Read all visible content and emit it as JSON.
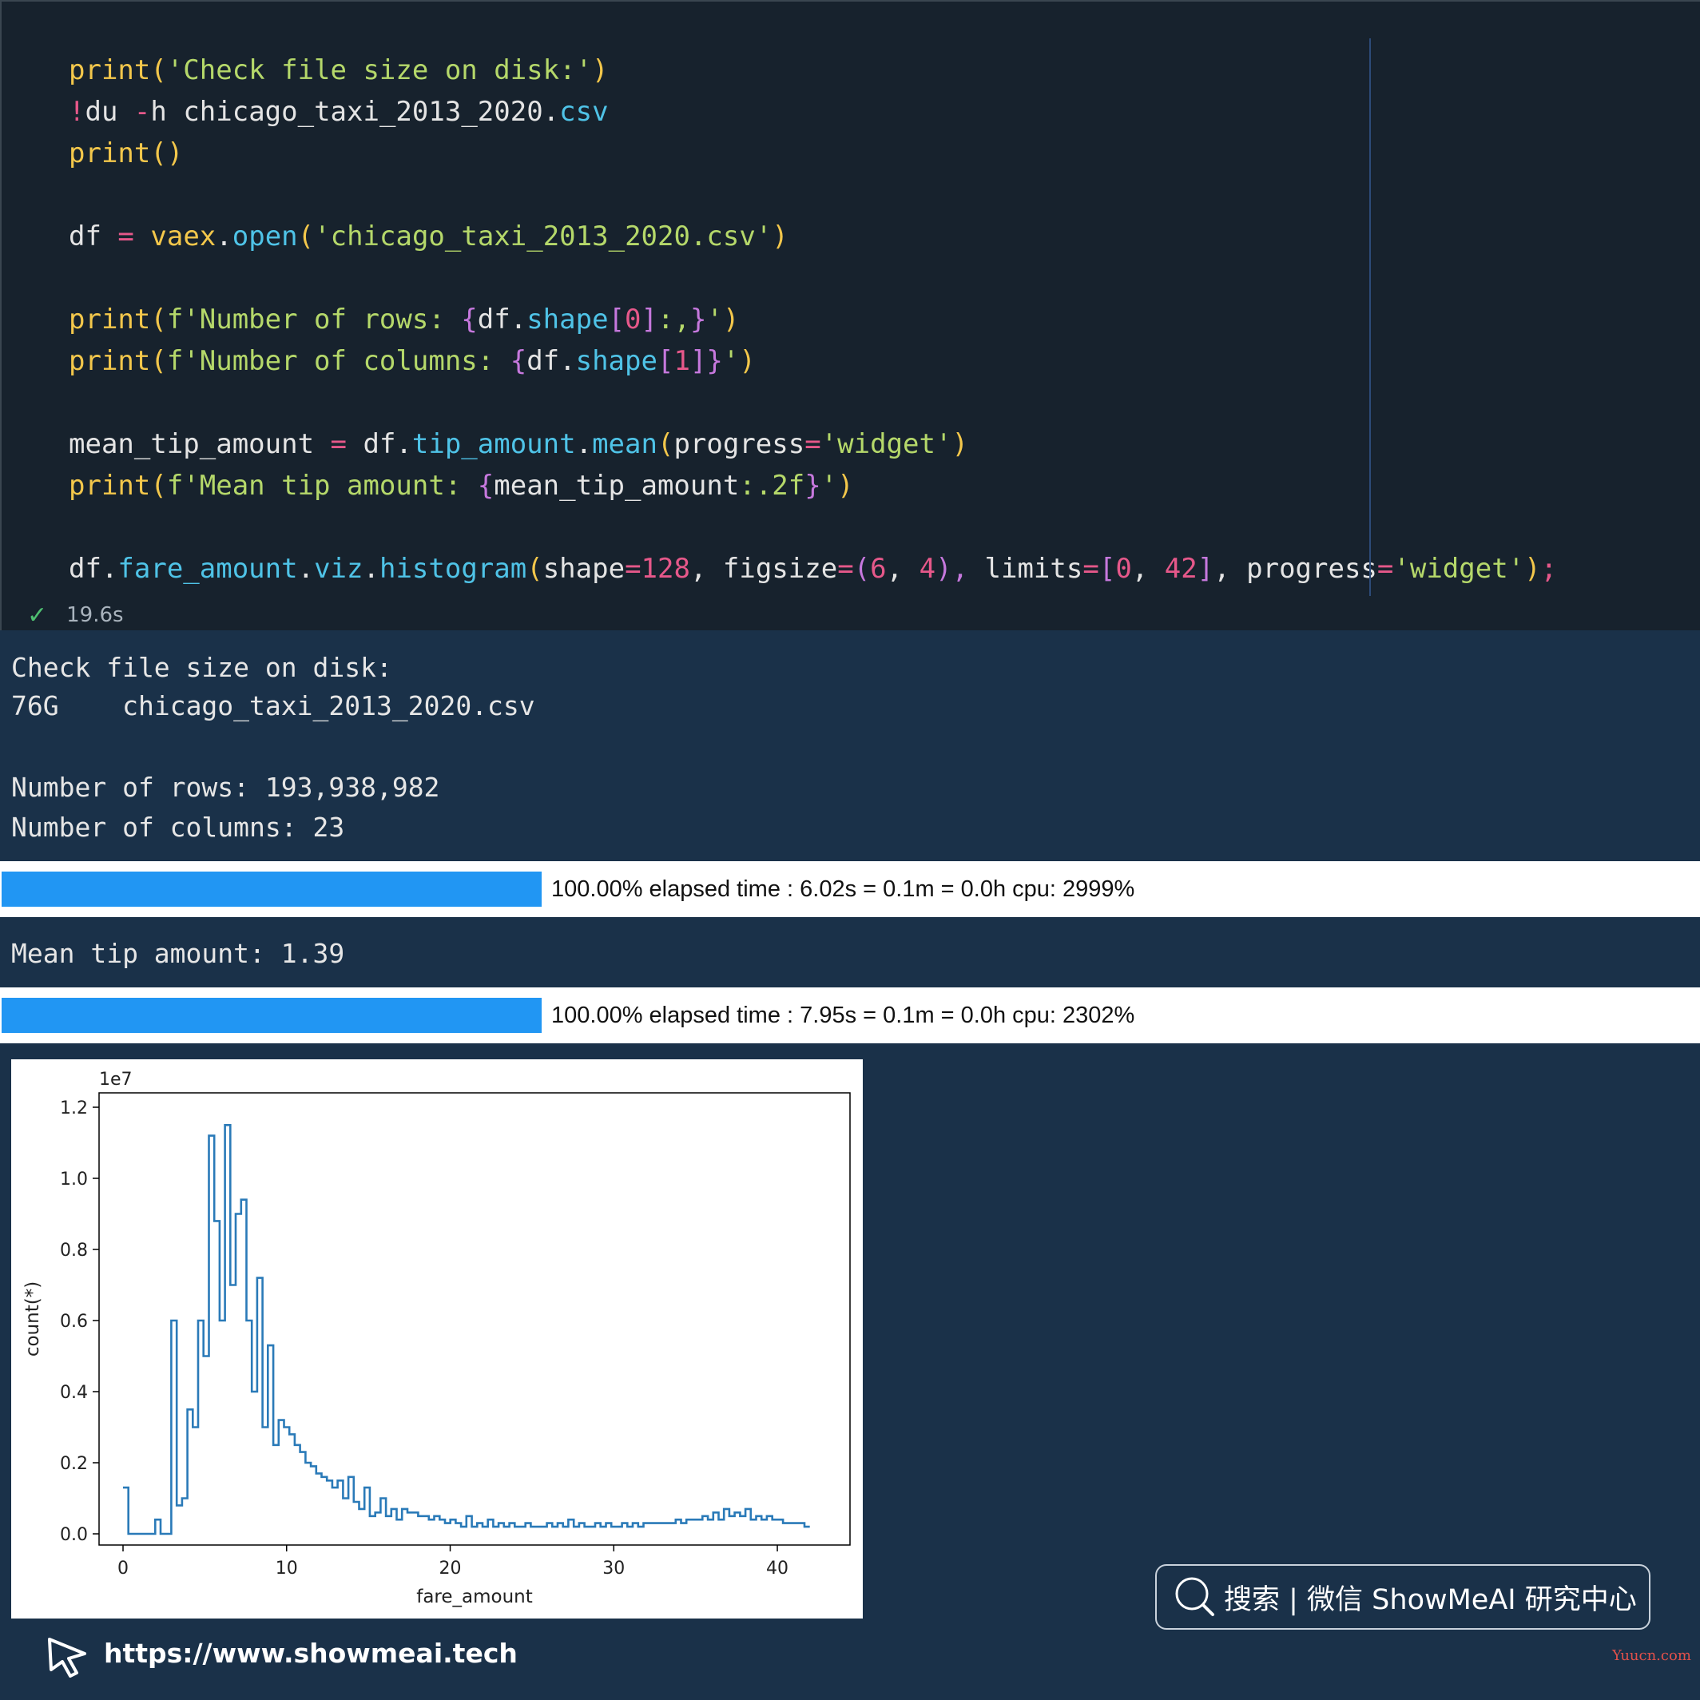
{
  "code": {
    "lines": [
      [
        [
          "kw",
          "print("
        ],
        [
          "st",
          "'Check file size on disk:'"
        ],
        [
          "kw",
          ")"
        ]
      ],
      [
        [
          "nm",
          "!"
        ],
        [
          "tx",
          "du "
        ],
        [
          "op",
          "-"
        ],
        [
          "tx",
          "h chicago_taxi_2013_2020."
        ],
        [
          "bl",
          "csv"
        ]
      ],
      [
        [
          "kw",
          "print()"
        ]
      ],
      [],
      [
        [
          "tx",
          "df "
        ],
        [
          "op",
          "="
        ],
        [
          "tx",
          " "
        ],
        [
          "kw",
          "vaex"
        ],
        [
          "tx",
          "."
        ],
        [
          "bl",
          "open"
        ],
        [
          "kw",
          "("
        ],
        [
          "st",
          "'chicago_taxi_2013_2020.csv'"
        ],
        [
          "kw",
          ")"
        ]
      ],
      [],
      [
        [
          "kw",
          "print("
        ],
        [
          "st",
          "f'Number of rows: "
        ],
        [
          "pu",
          "{"
        ],
        [
          "tx",
          "df."
        ],
        [
          "bl",
          "shape"
        ],
        [
          "pu",
          "["
        ],
        [
          "nm",
          "0"
        ],
        [
          "pu",
          "]"
        ],
        [
          "st",
          ":,"
        ],
        [
          "pu",
          "}"
        ],
        [
          "st",
          "'"
        ],
        [
          "kw",
          ")"
        ]
      ],
      [
        [
          "kw",
          "print("
        ],
        [
          "st",
          "f'Number of columns: "
        ],
        [
          "pu",
          "{"
        ],
        [
          "tx",
          "df."
        ],
        [
          "bl",
          "shape"
        ],
        [
          "pu",
          "["
        ],
        [
          "nm",
          "1"
        ],
        [
          "pu",
          "]}"
        ],
        [
          "st",
          "'"
        ],
        [
          "kw",
          ")"
        ]
      ],
      [],
      [
        [
          "tx",
          "mean_tip_amount "
        ],
        [
          "op",
          "="
        ],
        [
          "tx",
          " df."
        ],
        [
          "bl",
          "tip_amount"
        ],
        [
          "tx",
          "."
        ],
        [
          "bl",
          "mean"
        ],
        [
          "kw",
          "("
        ],
        [
          "tx",
          "progress"
        ],
        [
          "op",
          "="
        ],
        [
          "st",
          "'widget'"
        ],
        [
          "kw",
          ")"
        ]
      ],
      [
        [
          "kw",
          "print("
        ],
        [
          "st",
          "f'Mean tip amount: "
        ],
        [
          "pu",
          "{"
        ],
        [
          "tx",
          "mean_tip_amount"
        ],
        [
          "st",
          ":.2f"
        ],
        [
          "pu",
          "}"
        ],
        [
          "st",
          "'"
        ],
        [
          "kw",
          ")"
        ]
      ],
      [],
      [
        [
          "tx",
          "df."
        ],
        [
          "bl",
          "fare_amount"
        ],
        [
          "tx",
          "."
        ],
        [
          "bl",
          "viz"
        ],
        [
          "tx",
          "."
        ],
        [
          "bl",
          "histogram"
        ],
        [
          "kw",
          "("
        ],
        [
          "tx",
          "shape"
        ],
        [
          "op",
          "="
        ],
        [
          "nm",
          "128"
        ],
        [
          "tx",
          ", figsize"
        ],
        [
          "op",
          "="
        ],
        [
          "pu",
          "("
        ],
        [
          "nm",
          "6"
        ],
        [
          "tx",
          ", "
        ],
        [
          "nm",
          "4"
        ],
        [
          "pu",
          "),"
        ],
        [
          "tx",
          " limits"
        ],
        [
          "op",
          "="
        ],
        [
          "pu",
          "["
        ],
        [
          "nm",
          "0"
        ],
        [
          "tx",
          ", "
        ],
        [
          "nm",
          "42"
        ],
        [
          "pu",
          "]"
        ],
        [
          "tx",
          ", progress"
        ],
        [
          "op",
          "="
        ],
        [
          "st",
          "'widget'"
        ],
        [
          "kw",
          ")"
        ],
        [
          "op",
          ";"
        ]
      ]
    ],
    "exec_time": "19.6s"
  },
  "output": {
    "file_check_header": "Check file size on disk:",
    "file_size": "76G",
    "file_name": "chicago_taxi_2013_2020.csv",
    "rows_line": "Number of rows: 193,938,982",
    "cols_line": "Number of columns: 23",
    "progress1": {
      "percent": 100,
      "text": "100.00% elapsed time : 6.02s = 0.1m = 0.0h cpu: 2999%"
    },
    "mean_tip_line": "Mean tip amount: 1.39",
    "progress2": {
      "percent": 100,
      "text": "100.00% elapsed time : 7.95s = 0.1m = 0.0h cpu: 2302%"
    }
  },
  "chart_data": {
    "type": "line",
    "title": "",
    "xlabel": "fare_amount",
    "ylabel": "count(*)",
    "y_offset_label": "1e7",
    "xlim": [
      0,
      42
    ],
    "ylim": [
      0,
      1.2
    ],
    "xticks": [
      "0",
      "10",
      "20",
      "30",
      "40"
    ],
    "yticks": [
      "0.0",
      "0.2",
      "0.4",
      "0.6",
      "0.8",
      "1.0",
      "1.2"
    ],
    "color": "#2a7ab8",
    "bin_width": 0.328,
    "values": [
      0.13,
      0.0,
      0.0,
      0.0,
      0.0,
      0.0,
      0.04,
      0.0,
      0.0,
      0.6,
      0.08,
      0.1,
      0.35,
      0.3,
      0.6,
      0.5,
      1.12,
      0.88,
      0.6,
      1.15,
      0.7,
      0.9,
      0.94,
      0.6,
      0.4,
      0.72,
      0.3,
      0.53,
      0.25,
      0.32,
      0.3,
      0.28,
      0.25,
      0.23,
      0.2,
      0.19,
      0.17,
      0.16,
      0.15,
      0.13,
      0.15,
      0.1,
      0.16,
      0.09,
      0.07,
      0.13,
      0.05,
      0.06,
      0.1,
      0.05,
      0.07,
      0.04,
      0.07,
      0.06,
      0.06,
      0.05,
      0.05,
      0.04,
      0.05,
      0.04,
      0.03,
      0.04,
      0.03,
      0.02,
      0.05,
      0.02,
      0.03,
      0.02,
      0.04,
      0.02,
      0.03,
      0.02,
      0.03,
      0.02,
      0.02,
      0.03,
      0.02,
      0.02,
      0.02,
      0.03,
      0.02,
      0.03,
      0.02,
      0.04,
      0.02,
      0.03,
      0.02,
      0.02,
      0.03,
      0.02,
      0.03,
      0.02,
      0.02,
      0.03,
      0.02,
      0.03,
      0.02,
      0.03,
      0.03,
      0.03,
      0.03,
      0.03,
      0.03,
      0.04,
      0.03,
      0.04,
      0.04,
      0.04,
      0.05,
      0.04,
      0.06,
      0.04,
      0.07,
      0.05,
      0.06,
      0.05,
      0.07,
      0.04,
      0.05,
      0.04,
      0.05,
      0.04,
      0.04,
      0.03,
      0.03,
      0.03,
      0.03,
      0.02
    ]
  },
  "badge": {
    "text": "搜索 | 微信 ShowMeAI 研究中心"
  },
  "footer": {
    "url": "https://www.showmeai.tech",
    "watermark": "Yuucn.com"
  },
  "colors": {
    "progress_fill": "#2196f3",
    "code_bg": "#17222d",
    "output_bg": "#1a3149"
  }
}
